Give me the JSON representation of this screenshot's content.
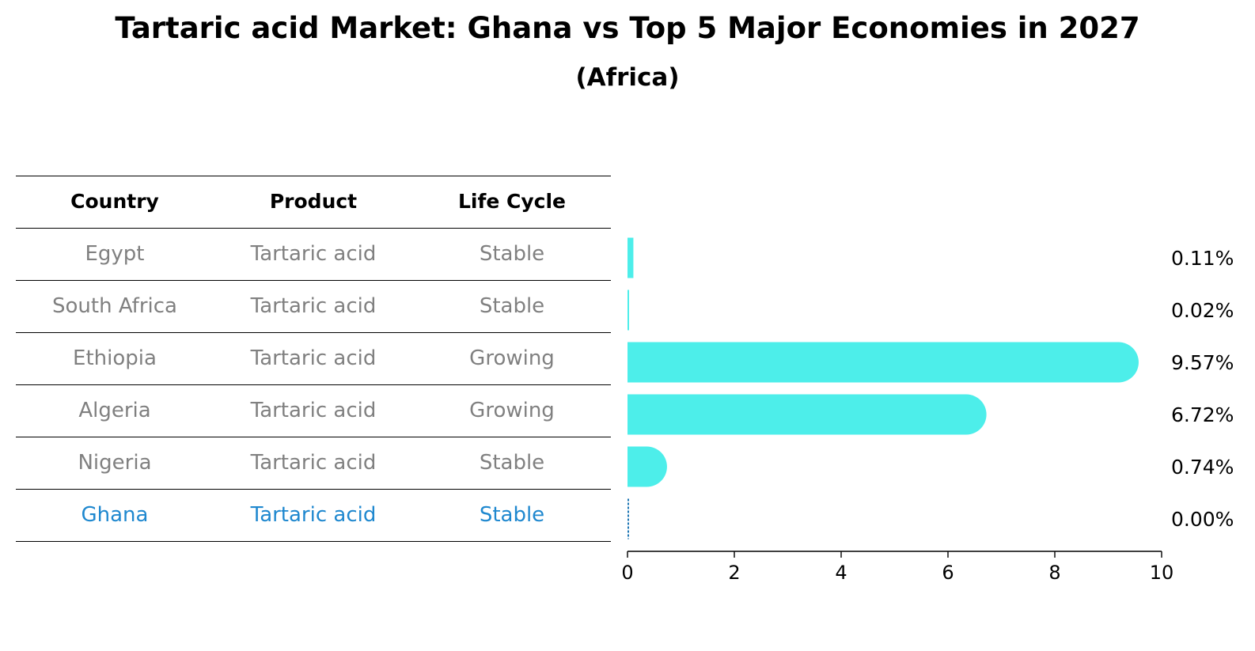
{
  "title": "Tartaric acid Market: Ghana vs Top 5 Major Economies in 2027",
  "subtitle": "(Africa)",
  "table": {
    "headers": [
      "Country",
      "Product",
      "Life Cycle"
    ],
    "rows": [
      [
        "Egypt",
        "Tartaric acid",
        "Stable"
      ],
      [
        "South Africa",
        "Tartaric acid",
        "Stable"
      ],
      [
        "Ethiopia",
        "Tartaric acid",
        "Growing"
      ],
      [
        "Algeria",
        "Tartaric acid",
        "Growing"
      ],
      [
        "Nigeria",
        "Tartaric acid",
        "Stable"
      ],
      [
        "Ghana",
        "Tartaric acid",
        "Stable"
      ]
    ]
  },
  "chart_data": {
    "type": "bar",
    "orientation": "horizontal",
    "categories": [
      "Egypt",
      "South Africa",
      "Ethiopia",
      "Algeria",
      "Nigeria",
      "Ghana"
    ],
    "values": [
      0.11,
      0.02,
      9.57,
      6.72,
      0.74,
      0.0
    ],
    "value_labels": [
      "0.11%",
      "0.02%",
      "9.57%",
      "6.72%",
      "0.74%",
      "0.00%"
    ],
    "xlim": [
      0,
      10
    ],
    "xticks": [
      "0",
      "2",
      "4",
      "6",
      "8",
      "10"
    ],
    "highlight": "Ghana",
    "colors": {
      "bar": "#4deeea",
      "highlight": "#1f77b4",
      "highlight_text": "#1f88cf",
      "muted_text": "#808080"
    },
    "grid": false
  }
}
